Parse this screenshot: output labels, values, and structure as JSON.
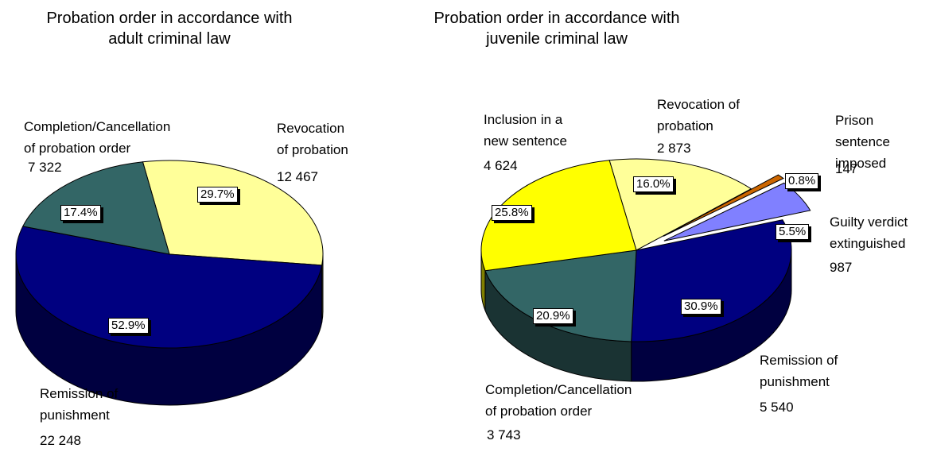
{
  "chart_data": [
    {
      "type": "pie3d",
      "title": "Probation order in accordance with\nadult criminal law",
      "categories": [
        "Revocation\nof probation",
        "Remission of\npunishment",
        "Completion/Cancellation\nof probation order"
      ],
      "values": [
        12467,
        22248,
        7322
      ],
      "value_labels": [
        "12 467",
        "22 248",
        "7 322"
      ],
      "percent_labels": [
        "29.7%",
        "52.9%",
        "17.4%"
      ],
      "colors": [
        "#ffff99",
        "#000080",
        "#336666"
      ]
    },
    {
      "type": "pie3d",
      "title": "Probation order in accordance with\njuvenile criminal law",
      "categories": [
        "Revocation of\nprobation",
        "Prison\nsentence\nimposed",
        "Guilty verdict\nextinguished",
        "Remission of\npunishment",
        "Completion/Cancellation\nof probation order",
        "Inclusion in a\nnew sentence"
      ],
      "values": [
        2873,
        147,
        987,
        5540,
        3743,
        4624
      ],
      "value_labels": [
        "2 873",
        "147",
        "987",
        "5 540",
        "3 743",
        "4 624"
      ],
      "percent_labels": [
        "16.0%",
        "0.8%",
        "5.5%",
        "30.9%",
        "20.9%",
        "25.8%"
      ],
      "colors": [
        "#ffff99",
        "#cc6600",
        "#8080ff",
        "#000080",
        "#336666",
        "#ffff00"
      ]
    }
  ]
}
